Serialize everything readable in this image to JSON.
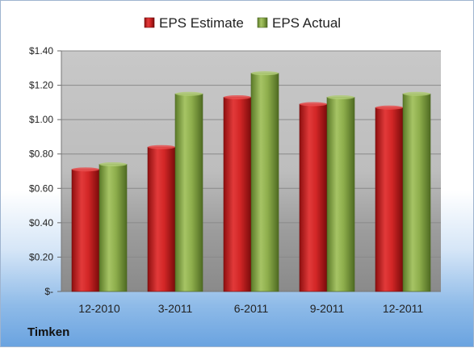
{
  "company": "Timken",
  "legend": {
    "placement": "top-center"
  },
  "colors": {
    "estimate": "#cc1f1f",
    "actual": "#8fb04a"
  },
  "chart_data": {
    "type": "bar",
    "categories": [
      "12-2010",
      "3-2011",
      "6-2011",
      "9-2011",
      "12-2011"
    ],
    "series": [
      {
        "name": "EPS Estimate",
        "values": [
          0.71,
          0.84,
          1.13,
          1.09,
          1.07
        ]
      },
      {
        "name": "EPS Actual",
        "values": [
          0.74,
          1.15,
          1.27,
          1.13,
          1.15
        ]
      }
    ],
    "ylim": [
      0,
      1.4
    ],
    "yticks": [
      0,
      0.2,
      0.4,
      0.6,
      0.8,
      1.0,
      1.2,
      1.4
    ],
    "ytick_labels": [
      "$-",
      "$0.20",
      "$0.40",
      "$0.60",
      "$0.80",
      "$1.00",
      "$1.20",
      "$1.40"
    ],
    "grid": true
  }
}
